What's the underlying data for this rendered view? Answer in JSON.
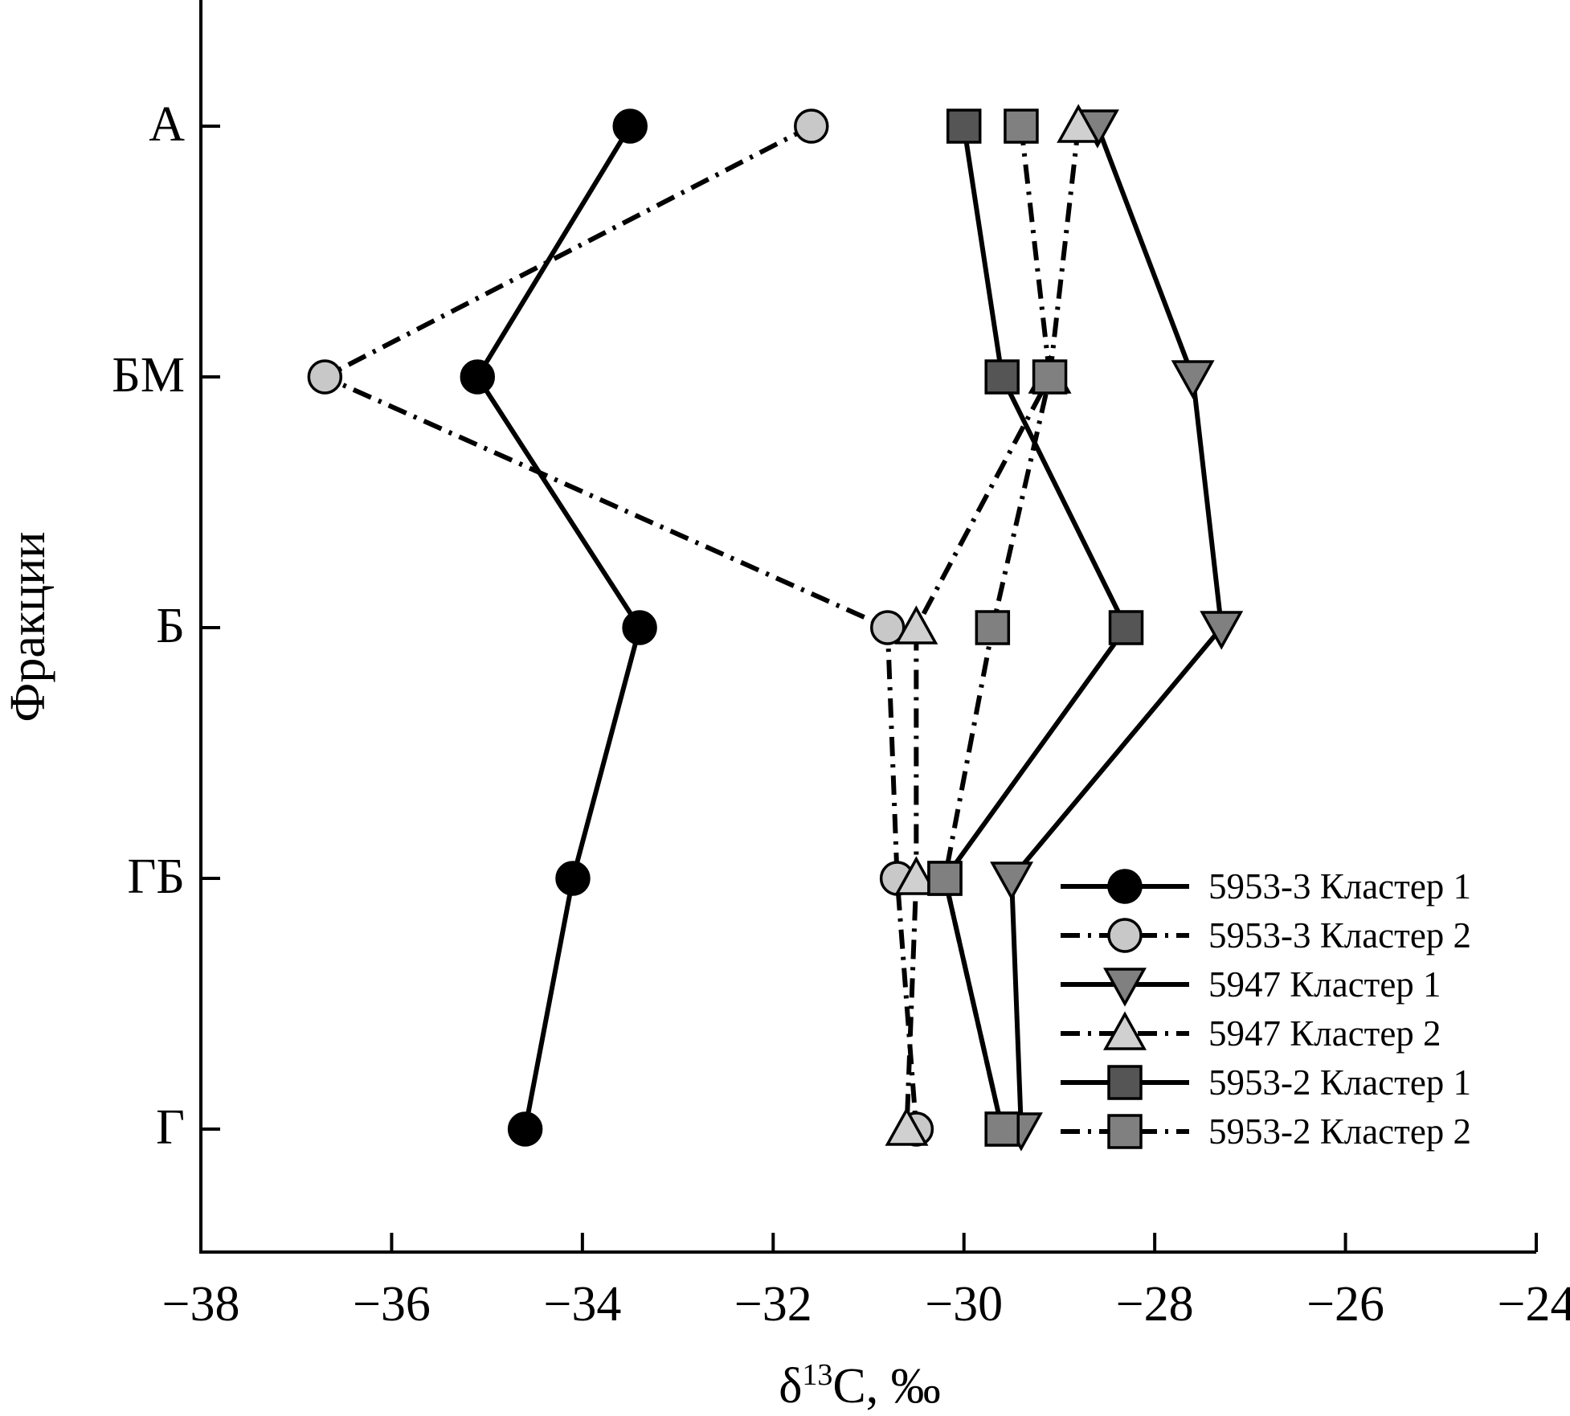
{
  "chart_data": {
    "type": "line",
    "xlabel": {
      "prefix": "δ",
      "sup": "13",
      "suffix": "C, ‰"
    },
    "ylabel": "Фракции",
    "xlim": [
      -38,
      -24
    ],
    "xticks": [
      -38,
      -36,
      -34,
      -32,
      -30,
      -28,
      -26,
      -24
    ],
    "xtick_labels": [
      "−38",
      "−36",
      "−34",
      "−32",
      "−30",
      "−28",
      "−26",
      "−24"
    ],
    "categories": [
      "А",
      "БМ",
      "Б",
      "ГБ",
      "Г"
    ],
    "grid": false,
    "legend_position": "bottom-right",
    "series": [
      {
        "name": "5953-3 Кластер 1",
        "values": [
          -33.5,
          -35.1,
          -33.4,
          -34.1,
          -34.6
        ],
        "marker": "circle",
        "fill": "#000000",
        "dash": "solid"
      },
      {
        "name": "5953-3 Кластер 2",
        "values": [
          -31.6,
          -36.7,
          -30.8,
          -30.7,
          -30.5
        ],
        "marker": "circle",
        "fill": "#c8c8c8",
        "dash": "dashdot"
      },
      {
        "name": "5947 Кластер 1",
        "values": [
          -28.6,
          -27.6,
          -27.3,
          -29.5,
          -29.4
        ],
        "marker": "triangle-down",
        "fill": "#808080",
        "dash": "solid"
      },
      {
        "name": "5947 Кластер 2",
        "values": [
          -28.8,
          -29.1,
          -30.5,
          -30.5,
          -30.6
        ],
        "marker": "triangle-up",
        "fill": "#d0d0d0",
        "dash": "dashdot"
      },
      {
        "name": "5953-2 Кластер 1",
        "values": [
          -30.0,
          -29.6,
          -28.3,
          -30.2,
          -29.6
        ],
        "marker": "square",
        "fill": "#555555",
        "dash": "solid"
      },
      {
        "name": "5953-2 Кластер 2",
        "values": [
          -29.4,
          -29.1,
          -29.7,
          -30.2,
          -29.6
        ],
        "marker": "square",
        "fill": "#808080",
        "dash": "dashdot"
      }
    ]
  }
}
